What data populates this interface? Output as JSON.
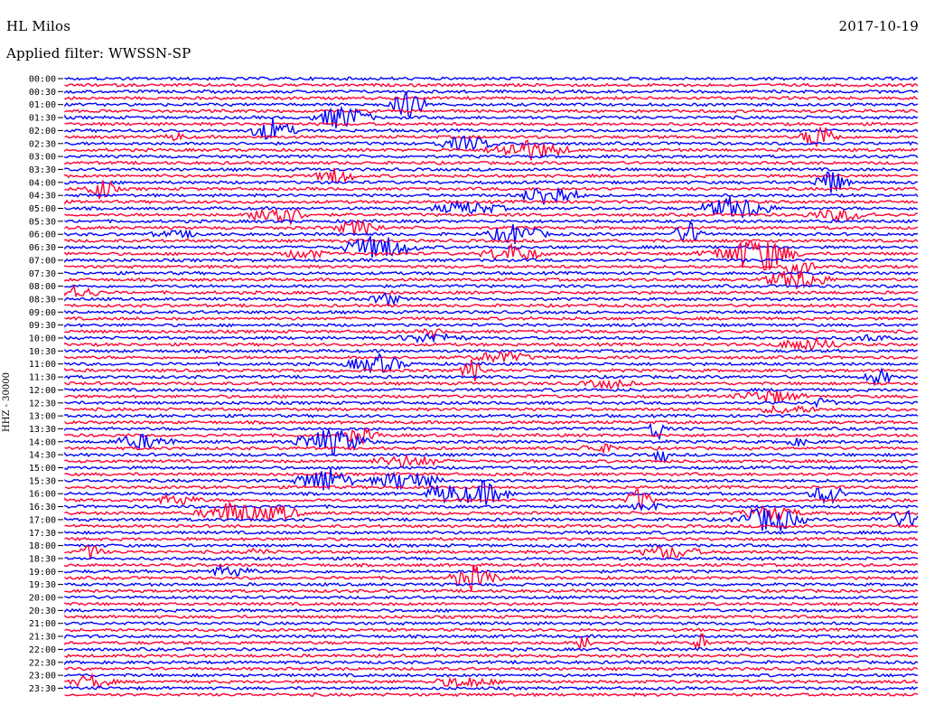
{
  "header": {
    "station": "HL Milos",
    "date": "2017-10-19",
    "filter_label": "Applied filter: WWSSN-SP"
  },
  "axis": {
    "channel_label": "HHZ - 30000"
  },
  "colors": {
    "trace_a": "#0000ff",
    "trace_b": "#ff0033",
    "background": "#ffffff"
  },
  "chart_data": {
    "type": "line",
    "title": "HL Milos",
    "subtitle": "Applied filter: WWSSN-SP",
    "ylabel": "HHZ - 30000",
    "xlabel": "",
    "traces_alternate_colors": [
      "#0000ff",
      "#ff0033"
    ],
    "grid": false,
    "y_tick_labels": [
      "00:00",
      "00:30",
      "01:00",
      "01:30",
      "02:00",
      "02:30",
      "03:00",
      "03:30",
      "04:00",
      "04:30",
      "05:00",
      "05:30",
      "06:00",
      "06:30",
      "07:00",
      "07:30",
      "08:00",
      "08:30",
      "09:00",
      "09:30",
      "10:00",
      "10:30",
      "11:00",
      "11:30",
      "12:00",
      "12:30",
      "13:00",
      "13:30",
      "14:00",
      "14:30",
      "15:00",
      "15:30",
      "16:00",
      "16:30",
      "17:00",
      "17:30",
      "18:00",
      "18:30",
      "19:00",
      "19:30",
      "20:00",
      "20:30",
      "21:00",
      "21:30",
      "22:00",
      "22:30",
      "23:00",
      "23:30"
    ]
  }
}
